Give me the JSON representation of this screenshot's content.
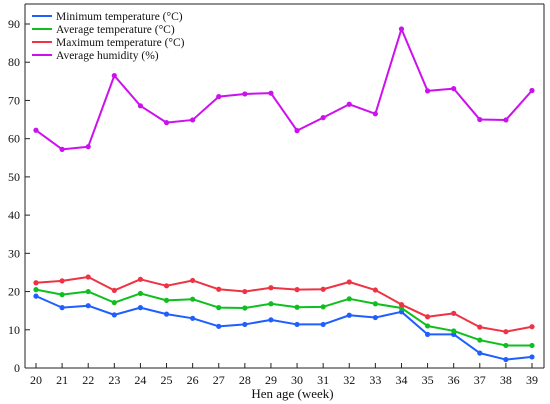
{
  "chart_data": {
    "type": "line",
    "title": "",
    "xlabel": "Hen age (week)",
    "ylabel": "",
    "x": [
      20,
      21,
      22,
      23,
      24,
      25,
      26,
      27,
      28,
      29,
      30,
      31,
      32,
      33,
      34,
      35,
      36,
      37,
      38,
      39
    ],
    "ylim": [
      0,
      90
    ],
    "yticks": [
      0,
      10,
      20,
      30,
      40,
      50,
      60,
      70,
      80,
      90
    ],
    "grid": false,
    "legend_position": "top-left",
    "series": [
      {
        "name": "Minimum temperature (°C)",
        "color": "#1f5fff",
        "values": [
          18.8,
          15.8,
          16.3,
          13.9,
          15.8,
          14.1,
          13.0,
          10.9,
          11.4,
          12.6,
          11.4,
          11.4,
          13.8,
          13.2,
          14.7,
          8.8,
          8.8,
          3.9,
          2.2,
          2.9
        ]
      },
      {
        "name": "Average temperature (°C)",
        "color": "#0fbf1f",
        "values": [
          20.5,
          19.2,
          20.0,
          17.1,
          19.5,
          17.7,
          18.0,
          15.8,
          15.7,
          16.8,
          15.9,
          16.0,
          18.1,
          16.8,
          15.7,
          11.0,
          9.7,
          7.3,
          5.9,
          5.9
        ]
      },
      {
        "name": "Maximum temperature (°C)",
        "color": "#ee3344",
        "values": [
          22.3,
          22.8,
          23.8,
          20.3,
          23.2,
          21.5,
          22.9,
          20.6,
          20.0,
          21.0,
          20.5,
          20.6,
          22.5,
          20.4,
          16.6,
          13.4,
          14.3,
          10.7,
          9.5,
          10.8
        ]
      },
      {
        "name": "Average humidity (%)",
        "color": "#cc11ee",
        "values": [
          62.2,
          57.2,
          57.9,
          76.5,
          68.6,
          64.2,
          64.9,
          71.0,
          71.7,
          71.9,
          62.1,
          65.5,
          69.0,
          66.5,
          88.7,
          72.5,
          73.1,
          65.0,
          64.9,
          72.6
        ]
      }
    ]
  }
}
